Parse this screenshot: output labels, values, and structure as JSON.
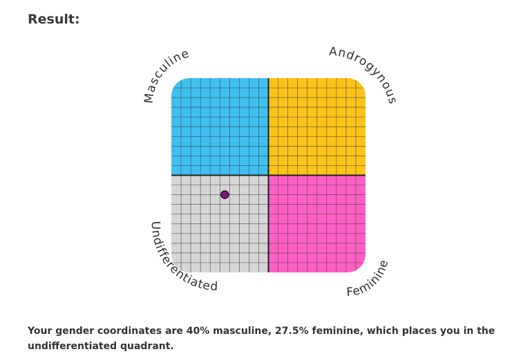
{
  "heading": "Result:",
  "chart_data": {
    "type": "scatter",
    "labels": {
      "top_left": "Masculine",
      "top_right": "Androgynous",
      "bottom_left": "Undifferentiated",
      "bottom_right": "Feminine"
    },
    "quadrant_colors": {
      "top_left": "#3fc0f0",
      "top_right": "#fcc31a",
      "bottom_left": "#d6d6d6",
      "bottom_right": "#ff5fc4"
    },
    "point": {
      "masculine": 40,
      "feminine": 27.5,
      "color": "#7a1a7a"
    },
    "xlim": [
      0,
      100
    ],
    "ylim": [
      0,
      100
    ],
    "grid": true
  },
  "summary": "Your gender coordinates are 40% masculine, 27.5% feminine, which places you in the undifferentiated quadrant."
}
